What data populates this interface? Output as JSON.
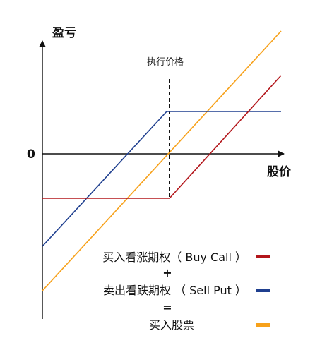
{
  "colors": {
    "long_call": "#b3161b",
    "short_put": "#1f3f8f",
    "long_stock": "#f7a11a",
    "axis": "#111111"
  },
  "diagram": {
    "y_axis_label": "盈亏",
    "x_axis_label": "股价",
    "zero_label": "0",
    "strike_label": "执行价格"
  },
  "legend": {
    "long_call": "买入看涨期权（ Buy Call ）",
    "plus": "+",
    "short_put": "卖出看跌期权 （ Sell Put ）",
    "equals": "=",
    "long_stock": "买入股票"
  }
}
